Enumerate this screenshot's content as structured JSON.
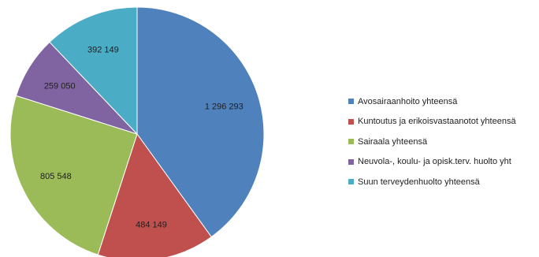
{
  "chart_data": {
    "type": "pie",
    "title": "",
    "legend_position": "right",
    "slices": [
      {
        "label": "Avosairaanhoito yhteensä",
        "value": 1296293,
        "value_label": "1 296 293",
        "color": "#4F81BD"
      },
      {
        "label": "Kuntoutus ja erikoisvastaanotot yhteensä",
        "value": 484149,
        "value_label": "484 149",
        "color": "#C0504D"
      },
      {
        "label": "Sairaala yhteensä",
        "value": 805548,
        "value_label": "805 548",
        "color": "#9BBB59"
      },
      {
        "label": "Neuvola-, koulu- ja opisk.terv. huolto yht",
        "value": 259050,
        "value_label": "259 050",
        "color": "#8064A2"
      },
      {
        "label": "Suun terveydenhuolto yhteensä",
        "value": 392149,
        "value_label": "392 149",
        "color": "#4BACC6"
      }
    ]
  }
}
